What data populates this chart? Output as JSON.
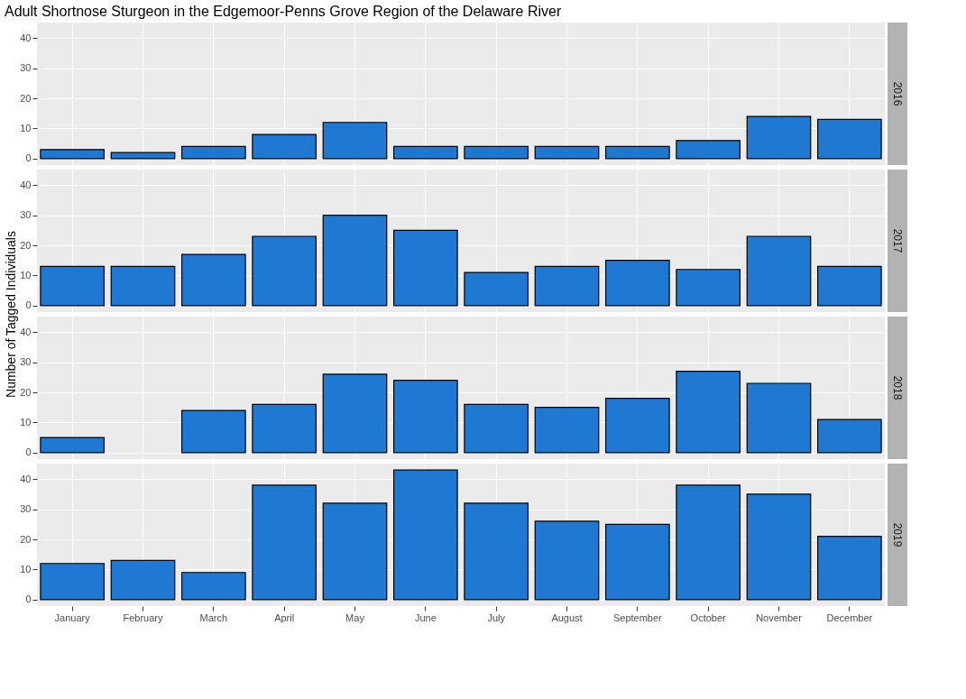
{
  "chart_data": [
    {
      "type": "bar",
      "title": "Adult Shortnose Sturgeon in the Edgemoor-Penns Grove Region of the Delaware River",
      "categories": [
        null,
        null,
        null,
        null,
        null,
        null,
        null,
        null,
        null,
        null,
        null,
        null
      ],
      "series": [
        {
          "name": "2016",
          "color": "#1f78d1",
          "values": [
            3,
            2,
            4,
            8,
            12,
            4,
            4,
            4,
            4,
            6,
            14,
            13
          ]
        }
      ],
      "ylim": [
        -2.15,
        45.15
      ],
      "yticks": [
        0,
        10,
        20,
        30,
        40
      ],
      "grid": true,
      "tick_labels": "y"
    },
    {
      "type": "bar",
      "ylabel": "Number of Tagged Individuals",
      "categories": [
        null,
        null,
        null,
        null,
        null,
        null,
        null,
        null,
        null,
        null,
        null,
        null
      ],
      "series": [
        {
          "name": "2017",
          "color": "#1f78d1",
          "values": [
            13,
            13,
            17,
            23,
            30,
            25,
            11,
            13,
            15,
            12,
            23,
            13
          ]
        }
      ],
      "ylim": [
        -2.15,
        45.15
      ],
      "yticks": [
        0,
        10,
        20,
        30,
        40
      ],
      "grid": true,
      "tick_labels": "y"
    },
    {
      "type": "bar",
      "categories": [
        null,
        null,
        null,
        null,
        null,
        null,
        null,
        null,
        null,
        null,
        null,
        null
      ],
      "series": [
        {
          "name": "2018",
          "color": "#1f78d1",
          "values": [
            5,
            null,
            14,
            16,
            26,
            24,
            16,
            15,
            18,
            27,
            23,
            11
          ]
        }
      ],
      "ylim": [
        -2.15,
        45.15
      ],
      "yticks": [
        0,
        10,
        20,
        30,
        40
      ],
      "grid": true,
      "tick_labels": "y"
    },
    {
      "type": "bar",
      "categories": [
        "January",
        "February",
        "March",
        "April",
        "May",
        "June",
        "July",
        "August",
        "September",
        "October",
        "November",
        "December"
      ],
      "series": [
        {
          "name": "2019",
          "color": "#1f78d1",
          "values": [
            12,
            13,
            9,
            38,
            32,
            43,
            32,
            26,
            25,
            38,
            35,
            21
          ]
        }
      ],
      "ylim": [
        -2.15,
        45.15
      ],
      "yticks": [
        0,
        10,
        20,
        30,
        40
      ],
      "grid": true
    }
  ]
}
